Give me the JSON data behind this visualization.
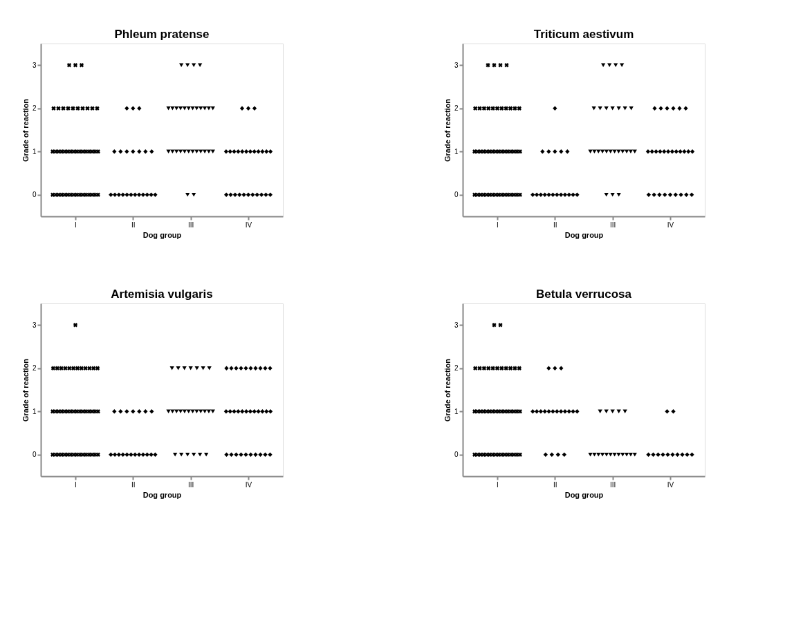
{
  "chart_data": [
    {
      "type": "scatter",
      "title": "Phleum pratense",
      "xlabel": "Dog group",
      "ylabel": "Grade of reaction",
      "categories": [
        "I",
        "II",
        "III",
        "IV"
      ],
      "ylim": [
        -0.5,
        3.5
      ],
      "yticks": [
        0,
        1,
        2,
        3
      ],
      "grid": false,
      "series": [
        {
          "color": "#000000",
          "marker": "cross",
          "x": [
            "I",
            "I",
            "I",
            "I",
            "I",
            "I",
            "I",
            "I",
            "I",
            "I",
            "I",
            "I",
            "I",
            "I",
            "I",
            "I",
            "I",
            "I",
            "I",
            "I",
            "I",
            "I",
            "I",
            "I",
            "I",
            "I",
            "I",
            "I",
            "I",
            "I",
            "I",
            "I",
            "I",
            "I",
            "I",
            "I",
            "I",
            "I",
            "I",
            "I",
            "I",
            "I",
            "I",
            "I",
            "I"
          ],
          "values": [
            3,
            3,
            3,
            2,
            2,
            2,
            2,
            2,
            2,
            2,
            2,
            2,
            2,
            1,
            1,
            1,
            1,
            1,
            1,
            1,
            1,
            1,
            1,
            1,
            1,
            1,
            1,
            1,
            1,
            0,
            0,
            0,
            0,
            0,
            0,
            0,
            0,
            0,
            0,
            0,
            0,
            0,
            0,
            0,
            0
          ]
        },
        {
          "color": "#000000",
          "marker": "diamond",
          "x": [
            "II",
            "II",
            "II",
            "II",
            "II",
            "II",
            "II",
            "II",
            "II",
            "II",
            "II",
            "II",
            "II",
            "II",
            "II",
            "II",
            "II",
            "II",
            "II",
            "II",
            "II",
            "II"
          ],
          "values": [
            2,
            2,
            2,
            1,
            1,
            1,
            1,
            1,
            1,
            1,
            0,
            0,
            0,
            0,
            0,
            0,
            0,
            0,
            0,
            0,
            0,
            0
          ]
        },
        {
          "color": "#000000",
          "marker": "triangle",
          "x": [
            "III",
            "III",
            "III",
            "III",
            "III",
            "III",
            "III",
            "III",
            "III",
            "III",
            "III",
            "III",
            "III",
            "III",
            "III",
            "III",
            "III",
            "III",
            "III",
            "III",
            "III",
            "III",
            "III",
            "III",
            "III",
            "III",
            "III",
            "III",
            "III",
            "III"
          ],
          "values": [
            3,
            3,
            3,
            3,
            2,
            2,
            2,
            2,
            2,
            2,
            2,
            2,
            2,
            2,
            2,
            2,
            1,
            1,
            1,
            1,
            1,
            1,
            1,
            1,
            1,
            1,
            1,
            1,
            0,
            0
          ]
        },
        {
          "color": "#000000",
          "marker": "diamond",
          "x": [
            "IV",
            "IV",
            "IV",
            "IV",
            "IV",
            "IV",
            "IV",
            "IV",
            "IV",
            "IV",
            "IV",
            "IV",
            "IV",
            "IV",
            "IV",
            "IV",
            "IV",
            "IV",
            "IV",
            "IV",
            "IV",
            "IV",
            "IV",
            "IV",
            "IV",
            "IV"
          ],
          "values": [
            2,
            2,
            2,
            1,
            1,
            1,
            1,
            1,
            1,
            1,
            1,
            1,
            1,
            1,
            1,
            0,
            0,
            0,
            0,
            0,
            0,
            0,
            0,
            0,
            0,
            0
          ]
        }
      ]
    },
    {
      "type": "scatter",
      "title": "Triticum aestivum",
      "xlabel": "Dog group",
      "ylabel": "Grade of reaction",
      "categories": [
        "I",
        "II",
        "III",
        "IV"
      ],
      "ylim": [
        -0.5,
        3.5
      ],
      "yticks": [
        0,
        1,
        2,
        3
      ],
      "grid": false,
      "series": [
        {
          "color": "#000000",
          "marker": "cross",
          "x": [
            "I",
            "I",
            "I",
            "I",
            "I",
            "I",
            "I",
            "I",
            "I",
            "I",
            "I",
            "I",
            "I",
            "I",
            "I",
            "I",
            "I",
            "I",
            "I",
            "I",
            "I",
            "I",
            "I",
            "I",
            "I",
            "I",
            "I",
            "I",
            "I",
            "I",
            "I",
            "I",
            "I",
            "I",
            "I",
            "I",
            "I",
            "I",
            "I",
            "I",
            "I",
            "I",
            "I",
            "I",
            "I",
            "I",
            "I"
          ],
          "values": [
            3,
            3,
            3,
            3,
            2,
            2,
            2,
            2,
            2,
            2,
            2,
            2,
            2,
            2,
            2,
            1,
            1,
            1,
            1,
            1,
            1,
            1,
            1,
            1,
            1,
            1,
            1,
            1,
            1,
            1,
            1,
            0,
            0,
            0,
            0,
            0,
            0,
            0,
            0,
            0,
            0,
            0,
            0,
            0,
            0,
            0,
            0
          ]
        },
        {
          "color": "#000000",
          "marker": "diamond",
          "x": [
            "II",
            "II",
            "II",
            "II",
            "II",
            "II",
            "II",
            "II",
            "II",
            "II",
            "II",
            "II",
            "II",
            "II",
            "II",
            "II",
            "II",
            "II"
          ],
          "values": [
            2,
            1,
            1,
            1,
            1,
            1,
            0,
            0,
            0,
            0,
            0,
            0,
            0,
            0,
            0,
            0,
            0,
            0
          ]
        },
        {
          "color": "#000000",
          "marker": "triangle",
          "x": [
            "III",
            "III",
            "III",
            "III",
            "III",
            "III",
            "III",
            "III",
            "III",
            "III",
            "III",
            "III",
            "III",
            "III",
            "III",
            "III",
            "III",
            "III",
            "III",
            "III",
            "III",
            "III",
            "III",
            "III",
            "III",
            "III"
          ],
          "values": [
            3,
            3,
            3,
            3,
            2,
            2,
            2,
            2,
            2,
            2,
            2,
            1,
            1,
            1,
            1,
            1,
            1,
            1,
            1,
            1,
            1,
            1,
            1,
            0,
            0,
            0
          ]
        },
        {
          "color": "#000000",
          "marker": "diamond",
          "x": [
            "IV",
            "IV",
            "IV",
            "IV",
            "IV",
            "IV",
            "IV",
            "IV",
            "IV",
            "IV",
            "IV",
            "IV",
            "IV",
            "IV",
            "IV",
            "IV",
            "IV",
            "IV",
            "IV",
            "IV",
            "IV",
            "IV",
            "IV",
            "IV",
            "IV",
            "IV",
            "IV"
          ],
          "values": [
            2,
            2,
            2,
            2,
            2,
            2,
            1,
            1,
            1,
            1,
            1,
            1,
            1,
            1,
            1,
            1,
            1,
            1,
            0,
            0,
            0,
            0,
            0,
            0,
            0,
            0,
            0
          ]
        }
      ]
    },
    {
      "type": "scatter",
      "title": "Artemisia vulgaris",
      "xlabel": "Dog group",
      "ylabel": "Grade of reaction",
      "categories": [
        "I",
        "II",
        "III",
        "IV"
      ],
      "ylim": [
        -0.5,
        3.5
      ],
      "yticks": [
        0,
        1,
        2,
        3
      ],
      "grid": false,
      "series": [
        {
          "color": "#000000",
          "marker": "cross",
          "x": [
            "I",
            "I",
            "I",
            "I",
            "I",
            "I",
            "I",
            "I",
            "I",
            "I",
            "I",
            "I",
            "I",
            "I",
            "I",
            "I",
            "I",
            "I",
            "I",
            "I",
            "I",
            "I",
            "I",
            "I",
            "I",
            "I",
            "I",
            "I",
            "I",
            "I",
            "I",
            "I",
            "I",
            "I",
            "I",
            "I",
            "I",
            "I",
            "I",
            "I",
            "I",
            "I",
            "I",
            "I",
            "I"
          ],
          "values": [
            3,
            2,
            2,
            2,
            2,
            2,
            2,
            2,
            2,
            2,
            2,
            2,
            2,
            1,
            1,
            1,
            1,
            1,
            1,
            1,
            1,
            1,
            1,
            1,
            1,
            1,
            1,
            1,
            1,
            0,
            0,
            0,
            0,
            0,
            0,
            0,
            0,
            0,
            0,
            0,
            0,
            0,
            0,
            0,
            0
          ]
        },
        {
          "color": "#000000",
          "marker": "diamond",
          "x": [
            "II",
            "II",
            "II",
            "II",
            "II",
            "II",
            "II",
            "II",
            "II",
            "II",
            "II",
            "II",
            "II",
            "II",
            "II",
            "II",
            "II",
            "II",
            "II"
          ],
          "values": [
            1,
            1,
            1,
            1,
            1,
            1,
            1,
            0,
            0,
            0,
            0,
            0,
            0,
            0,
            0,
            0,
            0,
            0,
            0
          ]
        },
        {
          "color": "#000000",
          "marker": "triangle",
          "x": [
            "III",
            "III",
            "III",
            "III",
            "III",
            "III",
            "III",
            "III",
            "III",
            "III",
            "III",
            "III",
            "III",
            "III",
            "III",
            "III",
            "III",
            "III",
            "III",
            "III",
            "III",
            "III",
            "III",
            "III",
            "III"
          ],
          "values": [
            2,
            2,
            2,
            2,
            2,
            2,
            2,
            1,
            1,
            1,
            1,
            1,
            1,
            1,
            1,
            1,
            1,
            1,
            1,
            0,
            0,
            0,
            0,
            0,
            0
          ]
        },
        {
          "color": "#000000",
          "marker": "diamond",
          "x": [
            "IV",
            "IV",
            "IV",
            "IV",
            "IV",
            "IV",
            "IV",
            "IV",
            "IV",
            "IV",
            "IV",
            "IV",
            "IV",
            "IV",
            "IV",
            "IV",
            "IV",
            "IV",
            "IV",
            "IV",
            "IV",
            "IV",
            "IV",
            "IV",
            "IV",
            "IV",
            "IV",
            "IV",
            "IV",
            "IV",
            "IV",
            "IV"
          ],
          "values": [
            2,
            2,
            2,
            2,
            2,
            2,
            2,
            2,
            2,
            2,
            1,
            1,
            1,
            1,
            1,
            1,
            1,
            1,
            1,
            1,
            1,
            1,
            0,
            0,
            0,
            0,
            0,
            0,
            0,
            0,
            0,
            0
          ]
        }
      ]
    },
    {
      "type": "scatter",
      "title": "Betula verrucosa",
      "xlabel": "Dog group",
      "ylabel": "Grade of reaction",
      "categories": [
        "I",
        "II",
        "III",
        "IV"
      ],
      "ylim": [
        -0.5,
        3.5
      ],
      "yticks": [
        0,
        1,
        2,
        3
      ],
      "grid": false,
      "series": [
        {
          "color": "#000000",
          "marker": "cross",
          "x": [
            "I",
            "I",
            "I",
            "I",
            "I",
            "I",
            "I",
            "I",
            "I",
            "I",
            "I",
            "I",
            "I",
            "I",
            "I",
            "I",
            "I",
            "I",
            "I",
            "I",
            "I",
            "I",
            "I",
            "I",
            "I",
            "I",
            "I",
            "I",
            "I",
            "I",
            "I",
            "I",
            "I",
            "I",
            "I",
            "I",
            "I",
            "I",
            "I",
            "I",
            "I",
            "I",
            "I",
            "I",
            "I"
          ],
          "values": [
            3,
            3,
            2,
            2,
            2,
            2,
            2,
            2,
            2,
            2,
            2,
            2,
            2,
            1,
            1,
            1,
            1,
            1,
            1,
            1,
            1,
            1,
            1,
            1,
            1,
            1,
            1,
            1,
            1,
            0,
            0,
            0,
            0,
            0,
            0,
            0,
            0,
            0,
            0,
            0,
            0,
            0,
            0,
            0,
            0
          ]
        },
        {
          "color": "#000000",
          "marker": "diamond",
          "x": [
            "II",
            "II",
            "II",
            "II",
            "II",
            "II",
            "II",
            "II",
            "II",
            "II",
            "II",
            "II",
            "II",
            "II",
            "II",
            "II",
            "II",
            "II",
            "II"
          ],
          "values": [
            2,
            2,
            2,
            1,
            1,
            1,
            1,
            1,
            1,
            1,
            1,
            1,
            1,
            1,
            1,
            0,
            0,
            0,
            0
          ]
        },
        {
          "color": "#000000",
          "marker": "triangle",
          "x": [
            "III",
            "III",
            "III",
            "III",
            "III",
            "III",
            "III",
            "III",
            "III",
            "III",
            "III",
            "III",
            "III",
            "III",
            "III",
            "III",
            "III"
          ],
          "values": [
            1,
            1,
            1,
            1,
            1,
            0,
            0,
            0,
            0,
            0,
            0,
            0,
            0,
            0,
            0,
            0,
            0
          ]
        },
        {
          "color": "#000000",
          "marker": "diamond",
          "x": [
            "IV",
            "IV",
            "IV",
            "IV",
            "IV",
            "IV",
            "IV",
            "IV",
            "IV",
            "IV",
            "IV",
            "IV"
          ],
          "values": [
            1,
            1,
            0,
            0,
            0,
            0,
            0,
            0,
            0,
            0,
            0,
            0
          ]
        }
      ]
    }
  ]
}
